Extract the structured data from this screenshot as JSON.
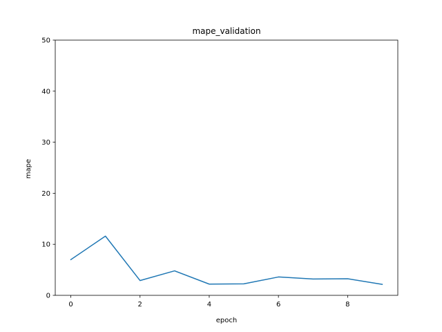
{
  "chart_data": {
    "type": "line",
    "title": "mape_validation",
    "xlabel": "epoch",
    "ylabel": "mape",
    "xlim": [
      -0.45,
      9.45
    ],
    "ylim": [
      0,
      50
    ],
    "xticks": [
      0,
      2,
      4,
      6,
      8
    ],
    "yticks": [
      0,
      10,
      20,
      30,
      40,
      50
    ],
    "xtick_labels": [
      "0",
      "2",
      "4",
      "6",
      "8"
    ],
    "ytick_labels": [
      "0",
      "10",
      "20",
      "30",
      "40",
      "50"
    ],
    "grid": false,
    "legend": "none",
    "series": [
      {
        "name": "mape_validation",
        "color": "#1f77b4",
        "x": [
          0,
          1,
          2,
          3,
          4,
          5,
          6,
          7,
          8,
          9
        ],
        "y": [
          7.0,
          11.6,
          2.9,
          4.8,
          2.2,
          2.25,
          3.6,
          3.2,
          3.25,
          2.15
        ]
      }
    ]
  }
}
